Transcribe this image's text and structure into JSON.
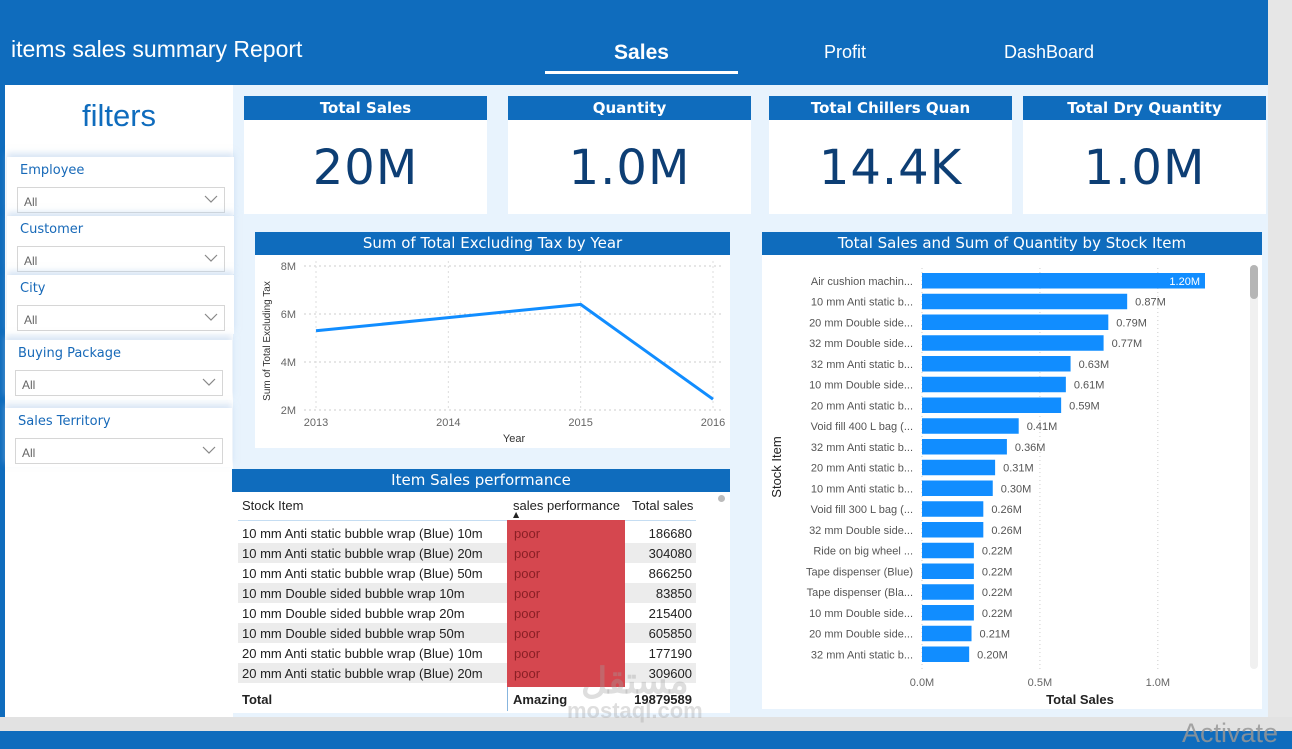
{
  "header": {
    "title": "items sales summary Report",
    "tabs": [
      {
        "label": "Sales",
        "active": true
      },
      {
        "label": "Profit",
        "active": false
      },
      {
        "label": "DashBoard",
        "active": false
      }
    ]
  },
  "filters": {
    "title": "filters",
    "slicers": [
      {
        "label": "Employee",
        "value": "All"
      },
      {
        "label": "Customer",
        "value": "All"
      },
      {
        "label": "City",
        "value": "All"
      },
      {
        "label": "Buying Package",
        "value": "All"
      },
      {
        "label": "Sales Territory",
        "value": "All"
      }
    ]
  },
  "kpis": [
    {
      "title": "Total Sales",
      "value": "20M"
    },
    {
      "title": "Quantity",
      "value": "1.0M"
    },
    {
      "title": "Total Chillers Quan",
      "value": "14.4K"
    },
    {
      "title": "Total Dry Quantity",
      "value": "1.0M"
    }
  ],
  "table": {
    "title": "Item Sales performance",
    "columns": [
      "Stock Item",
      "sales performance",
      "Total sales"
    ],
    "sort_indicator": "▲",
    "rows": [
      {
        "item": "10 mm Anti static bubble wrap (Blue) 10m",
        "perf": "poor",
        "total": "186680"
      },
      {
        "item": "10 mm Anti static bubble wrap (Blue) 20m",
        "perf": "poor",
        "total": "304080"
      },
      {
        "item": "10 mm Anti static bubble wrap (Blue) 50m",
        "perf": "poor",
        "total": "866250"
      },
      {
        "item": "10 mm Double sided bubble wrap 10m",
        "perf": "poor",
        "total": "83850"
      },
      {
        "item": "10 mm Double sided bubble wrap 20m",
        "perf": "poor",
        "total": "215400"
      },
      {
        "item": "10 mm Double sided bubble wrap 50m",
        "perf": "poor",
        "total": "605850"
      },
      {
        "item": "20 mm Anti static bubble wrap (Blue) 10m",
        "perf": "poor",
        "total": "177190"
      },
      {
        "item": "20 mm Anti static bubble wrap (Blue) 20m",
        "perf": "poor",
        "total": "309600"
      }
    ],
    "total_row": {
      "label": "Total",
      "perf": "Amazing",
      "total": "19879589"
    },
    "perf_color": "#d5474f"
  },
  "overlay": {
    "watermark_ar": "مستقل",
    "watermark_en": "mostaql.com",
    "activate_text": "Activate"
  },
  "chart_data": [
    {
      "type": "line",
      "title": "Sum of Total Excluding Tax by Year",
      "xlabel": "Year",
      "ylabel": "Sum of Total Excluding Tax",
      "x": [
        "2013",
        "2014",
        "2015",
        "2016"
      ],
      "series": [
        {
          "name": "Sum of Total Excluding Tax",
          "values": [
            5300000,
            5850000,
            6400000,
            2450000
          ]
        }
      ],
      "ylim": [
        2000000,
        8000000
      ],
      "yticks": [
        {
          "v": 2000000,
          "label": "2M"
        },
        {
          "v": 4000000,
          "label": "4M"
        },
        {
          "v": 6000000,
          "label": "6M"
        },
        {
          "v": 8000000,
          "label": "8M"
        }
      ],
      "grid": true,
      "color": "#118dff"
    },
    {
      "type": "bar",
      "orientation": "horizontal",
      "title": "Total Sales and Sum of Quantity by Stock Item",
      "xlabel": "Total Sales",
      "ylabel": "Stock Item",
      "categories": [
        "Air cushion machin...",
        "10 mm Anti static b...",
        "20 mm Double side...",
        "32 mm Double side...",
        "32 mm Anti static b...",
        "10 mm Double side...",
        "20 mm Anti static b...",
        "Void fill 400 L bag (...",
        "32 mm Anti static b...",
        "20 mm Anti static b...",
        "10 mm Anti static b...",
        "Void fill 300 L bag (...",
        "32 mm Double side...",
        "Ride on big wheel ...",
        "Tape dispenser (Blue)",
        "Tape dispenser (Bla...",
        "10 mm Double side...",
        "20 mm Double side...",
        "32 mm Anti static b..."
      ],
      "values": [
        1.2,
        0.87,
        0.79,
        0.77,
        0.63,
        0.61,
        0.59,
        0.41,
        0.36,
        0.31,
        0.3,
        0.26,
        0.26,
        0.22,
        0.22,
        0.22,
        0.22,
        0.21,
        0.2
      ],
      "value_labels": [
        "1.20M",
        "0.87M",
        "0.79M",
        "0.77M",
        "0.63M",
        "0.61M",
        "0.59M",
        "0.41M",
        "0.36M",
        "0.31M",
        "0.30M",
        "0.26M",
        "0.26M",
        "0.22M",
        "0.22M",
        "0.22M",
        "0.22M",
        "0.21M",
        "0.20M"
      ],
      "units": "M",
      "xlim": [
        0,
        1.2
      ],
      "xticks": [
        {
          "v": 0,
          "label": "0.0M"
        },
        {
          "v": 0.5,
          "label": "0.5M"
        },
        {
          "v": 1.0,
          "label": "1.0M"
        }
      ],
      "grid": true,
      "color": "#118dff"
    }
  ]
}
